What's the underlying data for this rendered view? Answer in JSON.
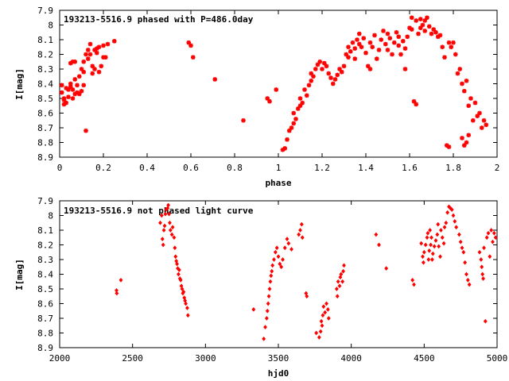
{
  "chart_data": [
    {
      "type": "scatter",
      "title": "193213-5516.9 phased with P=486.0day",
      "xlabel": "phase",
      "ylabel": "I[mag]",
      "xlim": [
        0,
        2
      ],
      "ylim": [
        8.9,
        7.9
      ],
      "y_inverted": true,
      "grid": false,
      "x_ticks": [
        "0",
        "0.2",
        "0.4",
        "0.6",
        "0.8",
        "1",
        "1.2",
        "1.4",
        "1.6",
        "1.8",
        "2"
      ],
      "y_ticks": [
        "7.9",
        "8",
        "8.1",
        "8.2",
        "8.3",
        "8.4",
        "8.5",
        "8.6",
        "8.7",
        "8.8",
        "8.9"
      ],
      "marker_color": "#ff0000",
      "points": [
        [
          0.01,
          8.41
        ],
        [
          0.01,
          8.46
        ],
        [
          0.02,
          8.51
        ],
        [
          0.02,
          8.54
        ],
        [
          0.02,
          8.5
        ],
        [
          0.03,
          8.43
        ],
        [
          0.03,
          8.53
        ],
        [
          0.04,
          8.49
        ],
        [
          0.04,
          8.44
        ],
        [
          0.05,
          8.42
        ],
        [
          0.05,
          8.4
        ],
        [
          0.05,
          8.26
        ],
        [
          0.06,
          8.25
        ],
        [
          0.06,
          8.5
        ],
        [
          0.06,
          8.44
        ],
        [
          0.07,
          8.37
        ],
        [
          0.07,
          8.47
        ],
        [
          0.07,
          8.25
        ],
        [
          0.08,
          8.41
        ],
        [
          0.08,
          8.46
        ],
        [
          0.09,
          8.35
        ],
        [
          0.09,
          8.47
        ],
        [
          0.1,
          8.3
        ],
        [
          0.1,
          8.45
        ],
        [
          0.11,
          8.25
        ],
        [
          0.11,
          8.41
        ],
        [
          0.11,
          8.32
        ],
        [
          0.12,
          8.2
        ],
        [
          0.12,
          8.72
        ],
        [
          0.13,
          8.23
        ],
        [
          0.13,
          8.17
        ],
        [
          0.14,
          8.2
        ],
        [
          0.14,
          8.13
        ],
        [
          0.15,
          8.28
        ],
        [
          0.15,
          8.33
        ],
        [
          0.16,
          8.3
        ],
        [
          0.16,
          8.17
        ],
        [
          0.17,
          8.19
        ],
        [
          0.17,
          8.16
        ],
        [
          0.18,
          8.15
        ],
        [
          0.18,
          8.32
        ],
        [
          0.19,
          8.28
        ],
        [
          0.2,
          8.14
        ],
        [
          0.2,
          8.22
        ],
        [
          0.21,
          8.22
        ],
        [
          0.22,
          8.13
        ],
        [
          0.25,
          8.11
        ],
        [
          0.59,
          8.12
        ],
        [
          0.6,
          8.14
        ],
        [
          0.61,
          8.22
        ],
        [
          0.71,
          8.37
        ],
        [
          0.84,
          8.65
        ],
        [
          0.95,
          8.5
        ],
        [
          0.96,
          8.52
        ],
        [
          0.99,
          8.44
        ],
        [
          1.02,
          8.85
        ],
        [
          1.03,
          8.84
        ],
        [
          1.04,
          8.78
        ],
        [
          1.05,
          8.72
        ],
        [
          1.06,
          8.7
        ],
        [
          1.07,
          8.67
        ],
        [
          1.07,
          8.6
        ],
        [
          1.08,
          8.64
        ],
        [
          1.09,
          8.57
        ],
        [
          1.1,
          8.55
        ],
        [
          1.1,
          8.5
        ],
        [
          1.11,
          8.53
        ],
        [
          1.12,
          8.44
        ],
        [
          1.13,
          8.48
        ],
        [
          1.14,
          8.41
        ],
        [
          1.15,
          8.38
        ],
        [
          1.15,
          8.33
        ],
        [
          1.16,
          8.35
        ],
        [
          1.17,
          8.3
        ],
        [
          1.18,
          8.27
        ],
        [
          1.19,
          8.25
        ],
        [
          1.2,
          8.3
        ],
        [
          1.21,
          8.26
        ],
        [
          1.22,
          8.28
        ],
        [
          1.23,
          8.33
        ],
        [
          1.24,
          8.36
        ],
        [
          1.25,
          8.4
        ],
        [
          1.26,
          8.37
        ],
        [
          1.27,
          8.34
        ],
        [
          1.28,
          8.3
        ],
        [
          1.29,
          8.32
        ],
        [
          1.3,
          8.28
        ],
        [
          1.31,
          8.2
        ],
        [
          1.32,
          8.22
        ],
        [
          1.32,
          8.15
        ],
        [
          1.33,
          8.18
        ],
        [
          1.34,
          8.12
        ],
        [
          1.35,
          8.16
        ],
        [
          1.35,
          8.23
        ],
        [
          1.36,
          8.1
        ],
        [
          1.37,
          8.13
        ],
        [
          1.37,
          8.06
        ],
        [
          1.38,
          8.15
        ],
        [
          1.39,
          8.09
        ],
        [
          1.4,
          8.19
        ],
        [
          1.41,
          8.28
        ],
        [
          1.42,
          8.3
        ],
        [
          1.42,
          8.12
        ],
        [
          1.43,
          8.15
        ],
        [
          1.44,
          8.07
        ],
        [
          1.45,
          8.23
        ],
        [
          1.46,
          8.17
        ],
        [
          1.47,
          8.1
        ],
        [
          1.48,
          8.04
        ],
        [
          1.49,
          8.13
        ],
        [
          1.5,
          8.06
        ],
        [
          1.5,
          8.17
        ],
        [
          1.51,
          8.09
        ],
        [
          1.52,
          8.2
        ],
        [
          1.53,
          8.12
        ],
        [
          1.54,
          8.05
        ],
        [
          1.55,
          8.14
        ],
        [
          1.55,
          8.08
        ],
        [
          1.56,
          8.2
        ],
        [
          1.57,
          8.11
        ],
        [
          1.58,
          8.16
        ],
        [
          1.58,
          8.3
        ],
        [
          1.59,
          8.08
        ],
        [
          1.6,
          8.02
        ],
        [
          1.61,
          7.95
        ],
        [
          1.61,
          8.03
        ],
        [
          1.62,
          8.52
        ],
        [
          1.63,
          8.54
        ],
        [
          1.63,
          7.97
        ],
        [
          1.64,
          8.06
        ],
        [
          1.65,
          7.96
        ],
        [
          1.65,
          8.02
        ],
        [
          1.66,
          8.0
        ],
        [
          1.67,
          7.97
        ],
        [
          1.67,
          8.04
        ],
        [
          1.68,
          7.95
        ],
        [
          1.69,
          8.01
        ],
        [
          1.7,
          8.06
        ],
        [
          1.71,
          8.03
        ],
        [
          1.72,
          8.05
        ],
        [
          1.73,
          8.08
        ],
        [
          1.74,
          8.07
        ],
        [
          1.75,
          8.15
        ],
        [
          1.76,
          8.22
        ],
        [
          1.77,
          8.82
        ],
        [
          1.78,
          8.83
        ],
        [
          1.78,
          8.12
        ],
        [
          1.79,
          8.15
        ],
        [
          1.8,
          8.12
        ],
        [
          1.81,
          8.2
        ],
        [
          1.82,
          8.33
        ],
        [
          1.83,
          8.3
        ],
        [
          1.84,
          8.4
        ],
        [
          1.84,
          8.77
        ],
        [
          1.85,
          8.82
        ],
        [
          1.85,
          8.45
        ],
        [
          1.86,
          8.8
        ],
        [
          1.86,
          8.38
        ],
        [
          1.87,
          8.55
        ],
        [
          1.87,
          8.75
        ],
        [
          1.88,
          8.5
        ],
        [
          1.89,
          8.65
        ],
        [
          1.9,
          8.53
        ],
        [
          1.91,
          8.62
        ],
        [
          1.92,
          8.6
        ],
        [
          1.93,
          8.7
        ],
        [
          1.94,
          8.65
        ],
        [
          1.95,
          8.68
        ]
      ]
    },
    {
      "type": "scatter",
      "title": "193213-5516.9 not phased light curve",
      "xlabel": "hjd0",
      "ylabel": "I[mag]",
      "xlim": [
        2000,
        5000
      ],
      "ylim": [
        8.9,
        7.9
      ],
      "y_inverted": true,
      "grid": false,
      "x_ticks": [
        "2000",
        "2500",
        "3000",
        "3500",
        "4000",
        "4500",
        "5000"
      ],
      "y_ticks": [
        "7.9",
        "8",
        "8.1",
        "8.2",
        "8.3",
        "8.4",
        "8.5",
        "8.6",
        "8.7",
        "8.8",
        "8.9"
      ],
      "marker_color": "#ff0000",
      "points": [
        [
          2390,
          8.51
        ],
        [
          2392,
          8.53
        ],
        [
          2420,
          8.44
        ],
        [
          2690,
          8.05
        ],
        [
          2700,
          8.0
        ],
        [
          2705,
          8.16
        ],
        [
          2710,
          8.2
        ],
        [
          2715,
          8.1
        ],
        [
          2720,
          8.07
        ],
        [
          2725,
          7.99
        ],
        [
          2730,
          7.96
        ],
        [
          2740,
          7.95
        ],
        [
          2745,
          7.93
        ],
        [
          2750,
          7.99
        ],
        [
          2755,
          8.05
        ],
        [
          2760,
          8.1
        ],
        [
          2770,
          8.13
        ],
        [
          2775,
          8.08
        ],
        [
          2785,
          8.15
        ],
        [
          2790,
          8.22
        ],
        [
          2795,
          8.28
        ],
        [
          2800,
          8.31
        ],
        [
          2805,
          8.33
        ],
        [
          2810,
          8.36
        ],
        [
          2815,
          8.4
        ],
        [
          2820,
          8.37
        ],
        [
          2825,
          8.43
        ],
        [
          2830,
          8.44
        ],
        [
          2835,
          8.48
        ],
        [
          2840,
          8.5
        ],
        [
          2845,
          8.53
        ],
        [
          2850,
          8.52
        ],
        [
          2855,
          8.56
        ],
        [
          2860,
          8.58
        ],
        [
          2865,
          8.6
        ],
        [
          2875,
          8.63
        ],
        [
          2880,
          8.68
        ],
        [
          3330,
          8.64
        ],
        [
          3400,
          8.84
        ],
        [
          3410,
          8.76
        ],
        [
          3420,
          8.7
        ],
        [
          3425,
          8.65
        ],
        [
          3430,
          8.6
        ],
        [
          3435,
          8.55
        ],
        [
          3440,
          8.5
        ],
        [
          3445,
          8.45
        ],
        [
          3450,
          8.41
        ],
        [
          3455,
          8.38
        ],
        [
          3460,
          8.34
        ],
        [
          3470,
          8.3
        ],
        [
          3480,
          8.25
        ],
        [
          3490,
          8.22
        ],
        [
          3500,
          8.28
        ],
        [
          3510,
          8.33
        ],
        [
          3520,
          8.35
        ],
        [
          3530,
          8.3
        ],
        [
          3545,
          8.22
        ],
        [
          3560,
          8.16
        ],
        [
          3570,
          8.19
        ],
        [
          3590,
          8.23
        ],
        [
          3640,
          8.13
        ],
        [
          3650,
          8.1
        ],
        [
          3660,
          8.06
        ],
        [
          3665,
          8.15
        ],
        [
          3690,
          8.53
        ],
        [
          3695,
          8.55
        ],
        [
          3760,
          8.8
        ],
        [
          3780,
          8.83
        ],
        [
          3790,
          8.79
        ],
        [
          3795,
          8.72
        ],
        [
          3800,
          8.75
        ],
        [
          3805,
          8.68
        ],
        [
          3810,
          8.62
        ],
        [
          3820,
          8.66
        ],
        [
          3830,
          8.6
        ],
        [
          3840,
          8.64
        ],
        [
          3845,
          8.7
        ],
        [
          3900,
          8.5
        ],
        [
          3905,
          8.55
        ],
        [
          3910,
          8.45
        ],
        [
          3920,
          8.48
        ],
        [
          3925,
          8.42
        ],
        [
          3930,
          8.4
        ],
        [
          3940,
          8.45
        ],
        [
          3945,
          8.38
        ],
        [
          3950,
          8.34
        ],
        [
          4170,
          8.13
        ],
        [
          4190,
          8.2
        ],
        [
          4240,
          8.36
        ],
        [
          4420,
          8.44
        ],
        [
          4430,
          8.47
        ],
        [
          4480,
          8.19
        ],
        [
          4490,
          8.28
        ],
        [
          4495,
          8.32
        ],
        [
          4500,
          8.25
        ],
        [
          4510,
          8.2
        ],
        [
          4520,
          8.15
        ],
        [
          4525,
          8.12
        ],
        [
          4530,
          8.3
        ],
        [
          4535,
          8.24
        ],
        [
          4540,
          8.1
        ],
        [
          4545,
          8.2
        ],
        [
          4550,
          8.15
        ],
        [
          4555,
          8.3
        ],
        [
          4560,
          8.26
        ],
        [
          4570,
          8.21
        ],
        [
          4580,
          8.17
        ],
        [
          4590,
          8.13
        ],
        [
          4595,
          8.06
        ],
        [
          4600,
          8.21
        ],
        [
          4610,
          8.28
        ],
        [
          4615,
          8.1
        ],
        [
          4625,
          8.15
        ],
        [
          4635,
          8.19
        ],
        [
          4640,
          8.08
        ],
        [
          4650,
          8.05
        ],
        [
          4660,
          7.98
        ],
        [
          4670,
          7.94
        ],
        [
          4680,
          7.95
        ],
        [
          4690,
          7.96
        ],
        [
          4700,
          8.0
        ],
        [
          4710,
          8.04
        ],
        [
          4720,
          8.08
        ],
        [
          4740,
          8.13
        ],
        [
          4750,
          8.18
        ],
        [
          4760,
          8.22
        ],
        [
          4770,
          8.25
        ],
        [
          4780,
          8.32
        ],
        [
          4790,
          8.4
        ],
        [
          4800,
          8.44
        ],
        [
          4810,
          8.47
        ],
        [
          4880,
          8.25
        ],
        [
          4890,
          8.3
        ],
        [
          4895,
          8.35
        ],
        [
          4900,
          8.4
        ],
        [
          4905,
          8.43
        ],
        [
          4910,
          8.22
        ],
        [
          4920,
          8.72
        ],
        [
          4930,
          8.15
        ],
        [
          4940,
          8.12
        ],
        [
          4950,
          8.28
        ],
        [
          4960,
          8.1
        ],
        [
          4970,
          8.18
        ],
        [
          4980,
          8.12
        ],
        [
          4990,
          8.15
        ]
      ]
    }
  ]
}
